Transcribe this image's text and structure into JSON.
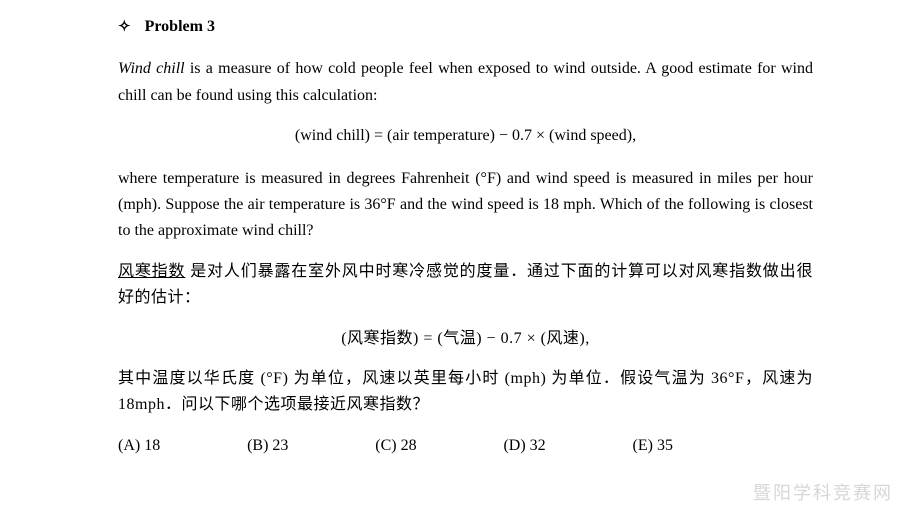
{
  "header": {
    "diamond": "✧",
    "title": "Problem 3"
  },
  "en": {
    "intro_italic": "Wind chill",
    "intro_rest": " is a measure of how cold people feel when exposed to wind outside. A good estimate for wind chill can be found using this calculation:",
    "equation": "(wind chill) = (air temperature) − 0.7 × (wind speed),",
    "body": "where temperature is measured in degrees Fahrenheit (°F) and wind speed is measured in miles per hour (mph). Suppose the air temperature is 36°F and the wind speed is 18 mph. Which of the following is closest to the approximate wind chill?"
  },
  "cn": {
    "intro_underline": "风寒指数",
    "intro_rest": " 是对人们暴露在室外风中时寒冷感觉的度量．通过下面的计算可以对风寒指数做出很好的估计：",
    "equation": "(风寒指数) = (气温) − 0.7 × (风速),",
    "body": "其中温度以华氏度 (°F) 为单位，风速以英里每小时 (mph) 为单位．假设气温为 36°F，风速为 18mph．问以下哪个选项最接近风寒指数？"
  },
  "options": {
    "A": "(A) 18",
    "B": "(B) 23",
    "C": "(C) 28",
    "D": "(D) 32",
    "E": "(E) 35"
  },
  "watermark": "暨阳学科竞赛网"
}
